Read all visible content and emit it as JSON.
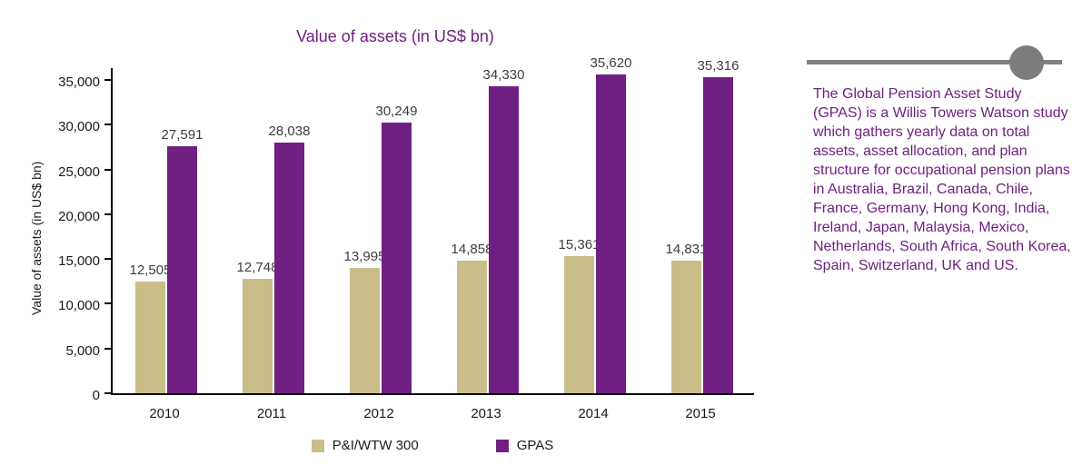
{
  "chart_data": {
    "type": "bar",
    "title": "Value of assets (in US$ bn)",
    "ylabel": "Value of assets (in US$ bn)",
    "xlabel": "",
    "categories": [
      "2010",
      "2011",
      "2012",
      "2013",
      "2014",
      "2015"
    ],
    "series": [
      {
        "name": "P&I/WTW 300",
        "color": "#c9bd8a",
        "values": [
          12505,
          12748,
          13995,
          14858,
          15361,
          14831
        ]
      },
      {
        "name": "GPAS",
        "color": "#702082",
        "values": [
          27591,
          28038,
          30249,
          34330,
          35620,
          35316
        ]
      }
    ],
    "ylim": [
      0,
      35000
    ],
    "ytick_step": 5000,
    "grid": false,
    "legend_position": "bottom",
    "value_labels_shown": true
  },
  "sidebar": {
    "note": "The Global Pension Asset Study (GPAS) is a Willis Towers Watson study which gathers yearly data on total assets, asset allocation, and plan structure for occupational pension plans in Australia, Brazil, Canada, Chile, France, Germany, Hong Kong, India, Ireland, Japan, Malaysia, Mexico, Netherlands, South Africa, South Korea, Spain, Switzerland, UK and US.",
    "accent_color": "#702082",
    "divider_color": "#808080",
    "dot_color": "#7d7d7d"
  }
}
